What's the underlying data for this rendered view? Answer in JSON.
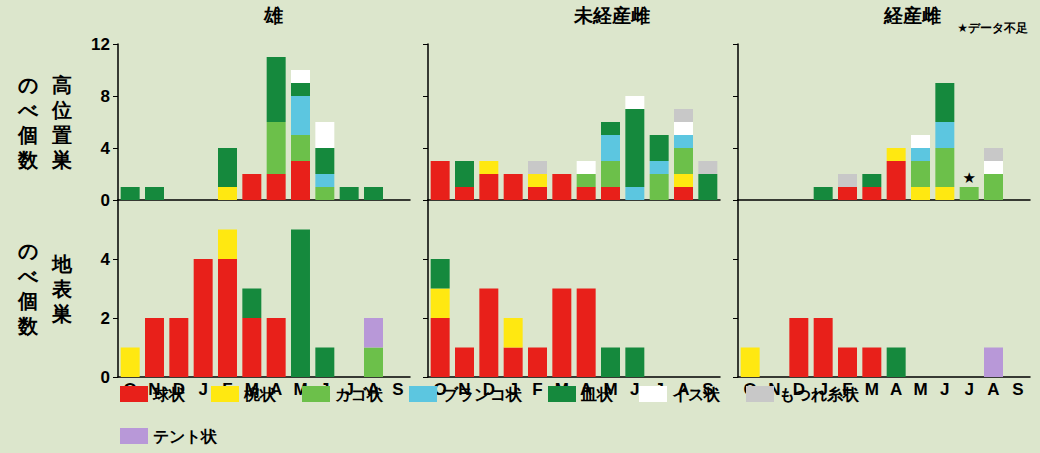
{
  "chart_data": [
    {
      "type": "bar",
      "title": "雄",
      "ylabel": [
        "のべ個数",
        "高位置巣"
      ],
      "stacked": true,
      "grid": false,
      "legend": "bottom",
      "tick_labels": "y",
      "categories": [
        "O",
        "N",
        "D",
        "J",
        "F",
        "M",
        "A",
        "M",
        "J",
        "J",
        "A",
        "S"
      ],
      "ylim": [
        0,
        12
      ],
      "yticks": [
        0,
        4,
        8,
        12
      ],
      "series": [
        {
          "name": "球状",
          "color": "#e8201a",
          "values": [
            0,
            0,
            0,
            0,
            0,
            2,
            2,
            3,
            0,
            0,
            0,
            0
          ]
        },
        {
          "name": "椀状",
          "color": "#ffe811",
          "values": [
            0,
            0,
            0,
            0,
            1,
            0,
            0,
            0,
            0,
            0,
            0,
            0
          ]
        },
        {
          "name": "カゴ状",
          "color": "#6cc04a",
          "values": [
            0,
            0,
            0,
            0,
            0,
            0,
            4,
            2,
            1,
            0,
            0,
            0
          ]
        },
        {
          "name": "ブランコ状",
          "color": "#5cc6e0",
          "values": [
            0,
            0,
            0,
            0,
            0,
            0,
            0,
            3,
            1,
            0,
            0,
            0
          ]
        },
        {
          "name": "皿状",
          "color": "#15893d",
          "values": [
            1,
            1,
            0,
            0,
            3,
            0,
            5,
            1,
            2,
            1,
            1,
            0
          ]
        },
        {
          "name": "イス状",
          "color": "#ffffff",
          "values": [
            0,
            0,
            0,
            0,
            0,
            0,
            0,
            1,
            2,
            0,
            0,
            0
          ]
        },
        {
          "name": "もつれ糸状",
          "color": "#c8c8c8",
          "values": [
            0,
            0,
            0,
            0,
            0,
            0,
            0,
            0,
            0,
            0,
            0,
            0
          ]
        },
        {
          "name": "テント状",
          "color": "#b898d8",
          "values": [
            0,
            0,
            0,
            0,
            0,
            0,
            0,
            0,
            0,
            0,
            0,
            0
          ]
        }
      ]
    },
    {
      "type": "bar",
      "title": "未経産雌",
      "stacked": true,
      "grid": false,
      "tick_labels": false,
      "categories": [
        "O",
        "N",
        "D",
        "J",
        "F",
        "M",
        "A",
        "M",
        "J",
        "J",
        "A",
        "S"
      ],
      "ylim": [
        0,
        12
      ],
      "yticks": [
        0,
        4,
        8,
        12
      ],
      "series": [
        {
          "name": "球状",
          "color": "#e8201a",
          "values": [
            3,
            1,
            2,
            2,
            1,
            2,
            1,
            1,
            0,
            0,
            1,
            0
          ]
        },
        {
          "name": "椀状",
          "color": "#ffe811",
          "values": [
            0,
            0,
            1,
            0,
            1,
            0,
            0,
            0,
            0,
            0,
            1,
            0
          ]
        },
        {
          "name": "カゴ状",
          "color": "#6cc04a",
          "values": [
            0,
            0,
            0,
            0,
            0,
            0,
            1,
            2,
            0,
            2,
            2,
            0
          ]
        },
        {
          "name": "ブランコ状",
          "color": "#5cc6e0",
          "values": [
            0,
            0,
            0,
            0,
            0,
            0,
            0,
            2,
            1,
            1,
            1,
            0
          ]
        },
        {
          "name": "皿状",
          "color": "#15893d",
          "values": [
            0,
            2,
            0,
            0,
            0,
            0,
            0,
            1,
            6,
            2,
            0,
            2
          ]
        },
        {
          "name": "イス状",
          "color": "#ffffff",
          "values": [
            0,
            0,
            0,
            0,
            0,
            0,
            1,
            0,
            1,
            0,
            1,
            0
          ]
        },
        {
          "name": "もつれ糸状",
          "color": "#c8c8c8",
          "values": [
            0,
            0,
            0,
            0,
            1,
            0,
            0,
            0,
            0,
            0,
            1,
            1
          ]
        },
        {
          "name": "テント状",
          "color": "#b898d8",
          "values": [
            0,
            0,
            0,
            0,
            0,
            0,
            0,
            0,
            0,
            0,
            0,
            0
          ]
        }
      ]
    },
    {
      "type": "bar",
      "title": "経産雌",
      "stacked": true,
      "grid": false,
      "tick_labels": false,
      "annotations": [
        {
          "text": "★データ不足"
        },
        {
          "text": "★",
          "category": 9
        }
      ],
      "categories": [
        "O",
        "N",
        "D",
        "J",
        "F",
        "M",
        "A",
        "M",
        "J",
        "J",
        "A",
        "S"
      ],
      "ylim": [
        0,
        12
      ],
      "yticks": [
        0,
        4,
        8,
        12
      ],
      "series": [
        {
          "name": "球状",
          "color": "#e8201a",
          "values": [
            0,
            0,
            0,
            0,
            1,
            1,
            3,
            0,
            0,
            0,
            0,
            0
          ]
        },
        {
          "name": "椀状",
          "color": "#ffe811",
          "values": [
            0,
            0,
            0,
            0,
            0,
            0,
            1,
            1,
            1,
            0,
            0,
            0
          ]
        },
        {
          "name": "カゴ状",
          "color": "#6cc04a",
          "values": [
            0,
            0,
            0,
            0,
            0,
            0,
            0,
            2,
            3,
            1,
            2,
            0
          ]
        },
        {
          "name": "ブランコ状",
          "color": "#5cc6e0",
          "values": [
            0,
            0,
            0,
            0,
            0,
            0,
            0,
            1,
            2,
            0,
            0,
            0
          ]
        },
        {
          "name": "皿状",
          "color": "#15893d",
          "values": [
            0,
            0,
            0,
            1,
            0,
            1,
            0,
            0,
            3,
            0,
            0,
            0
          ]
        },
        {
          "name": "イス状",
          "color": "#ffffff",
          "values": [
            0,
            0,
            0,
            0,
            0,
            0,
            0,
            1,
            0,
            0,
            1,
            0
          ]
        },
        {
          "name": "もつれ糸状",
          "color": "#c8c8c8",
          "values": [
            0,
            0,
            0,
            0,
            1,
            0,
            0,
            0,
            0,
            0,
            1,
            0
          ]
        },
        {
          "name": "テント状",
          "color": "#b898d8",
          "values": [
            0,
            0,
            0,
            0,
            0,
            0,
            0,
            0,
            0,
            0,
            0,
            0
          ]
        }
      ]
    },
    {
      "type": "bar",
      "ylabel": [
        "のべ個数",
        "地表巣"
      ],
      "stacked": true,
      "grid": false,
      "tick_labels": true,
      "categories": [
        "O",
        "N",
        "D",
        "J",
        "F",
        "M",
        "A",
        "M",
        "J",
        "J",
        "A",
        "S"
      ],
      "ylim": [
        0,
        6
      ],
      "yticks": [
        0,
        2,
        4
      ],
      "series": [
        {
          "name": "球状",
          "color": "#e8201a",
          "values": [
            0,
            2,
            2,
            4,
            4,
            2,
            2,
            0,
            0,
            0,
            0,
            0
          ]
        },
        {
          "name": "椀状",
          "color": "#ffe811",
          "values": [
            1,
            0,
            0,
            0,
            1,
            0,
            0,
            0,
            0,
            0,
            0,
            0
          ]
        },
        {
          "name": "カゴ状",
          "color": "#6cc04a",
          "values": [
            0,
            0,
            0,
            0,
            0,
            0,
            0,
            0,
            0,
            0,
            1,
            0
          ]
        },
        {
          "name": "ブランコ状",
          "color": "#5cc6e0",
          "values": [
            0,
            0,
            0,
            0,
            0,
            0,
            0,
            0,
            0,
            0,
            0,
            0
          ]
        },
        {
          "name": "皿状",
          "color": "#15893d",
          "values": [
            0,
            0,
            0,
            0,
            0,
            1,
            0,
            5,
            1,
            0,
            0,
            0
          ]
        },
        {
          "name": "イス状",
          "color": "#ffffff",
          "values": [
            0,
            0,
            0,
            0,
            0,
            0,
            0,
            0,
            0,
            0,
            0,
            0
          ]
        },
        {
          "name": "もつれ糸状",
          "color": "#c8c8c8",
          "values": [
            0,
            0,
            0,
            0,
            0,
            0,
            0,
            0,
            0,
            0,
            0,
            0
          ]
        },
        {
          "name": "テント状",
          "color": "#b898d8",
          "values": [
            0,
            0,
            0,
            0,
            0,
            0,
            0,
            0,
            0,
            0,
            1,
            0
          ]
        }
      ]
    },
    {
      "type": "bar",
      "stacked": true,
      "grid": false,
      "tick_labels": "x",
      "categories": [
        "O",
        "N",
        "D",
        "J",
        "F",
        "M",
        "A",
        "M",
        "J",
        "J",
        "A",
        "S"
      ],
      "ylim": [
        0,
        6
      ],
      "yticks": [
        0,
        2,
        4
      ],
      "series": [
        {
          "name": "球状",
          "color": "#e8201a",
          "values": [
            2,
            1,
            3,
            1,
            1,
            3,
            3,
            0,
            0,
            0,
            0,
            0
          ]
        },
        {
          "name": "椀状",
          "color": "#ffe811",
          "values": [
            1,
            0,
            0,
            1,
            0,
            0,
            0,
            0,
            0,
            0,
            0,
            0
          ]
        },
        {
          "name": "カゴ状",
          "color": "#6cc04a",
          "values": [
            0,
            0,
            0,
            0,
            0,
            0,
            0,
            0,
            0,
            0,
            0,
            0
          ]
        },
        {
          "name": "ブランコ状",
          "color": "#5cc6e0",
          "values": [
            0,
            0,
            0,
            0,
            0,
            0,
            0,
            0,
            0,
            0,
            0,
            0
          ]
        },
        {
          "name": "皿状",
          "color": "#15893d",
          "values": [
            1,
            0,
            0,
            0,
            0,
            0,
            0,
            1,
            1,
            0,
            0,
            0
          ]
        },
        {
          "name": "イス状",
          "color": "#ffffff",
          "values": [
            0,
            0,
            0,
            0,
            0,
            0,
            0,
            0,
            0,
            0,
            0,
            0
          ]
        },
        {
          "name": "もつれ糸状",
          "color": "#c8c8c8",
          "values": [
            0,
            0,
            0,
            0,
            0,
            0,
            0,
            0,
            0,
            0,
            0,
            0
          ]
        },
        {
          "name": "テント状",
          "color": "#b898d8",
          "values": [
            0,
            0,
            0,
            0,
            0,
            0,
            0,
            0,
            0,
            0,
            0,
            0
          ]
        }
      ]
    },
    {
      "type": "bar",
      "stacked": true,
      "grid": false,
      "tick_labels": "x",
      "categories": [
        "O",
        "N",
        "D",
        "J",
        "F",
        "M",
        "A",
        "M",
        "J",
        "J",
        "A",
        "S"
      ],
      "ylim": [
        0,
        6
      ],
      "yticks": [
        0,
        2,
        4
      ],
      "series": [
        {
          "name": "球状",
          "color": "#e8201a",
          "values": [
            0,
            0,
            2,
            2,
            1,
            1,
            0,
            0,
            0,
            0,
            0,
            0
          ]
        },
        {
          "name": "椀状",
          "color": "#ffe811",
          "values": [
            1,
            0,
            0,
            0,
            0,
            0,
            0,
            0,
            0,
            0,
            0,
            0
          ]
        },
        {
          "name": "カゴ状",
          "color": "#6cc04a",
          "values": [
            0,
            0,
            0,
            0,
            0,
            0,
            0,
            0,
            0,
            0,
            0,
            0
          ]
        },
        {
          "name": "ブランコ状",
          "color": "#5cc6e0",
          "values": [
            0,
            0,
            0,
            0,
            0,
            0,
            0,
            0,
            0,
            0,
            0,
            0
          ]
        },
        {
          "name": "皿状",
          "color": "#15893d",
          "values": [
            0,
            0,
            0,
            0,
            0,
            0,
            1,
            0,
            0,
            0,
            0,
            0
          ]
        },
        {
          "name": "イス状",
          "color": "#ffffff",
          "values": [
            0,
            0,
            0,
            0,
            0,
            0,
            0,
            0,
            0,
            0,
            0,
            0
          ]
        },
        {
          "name": "もつれ糸状",
          "color": "#c8c8c8",
          "values": [
            0,
            0,
            0,
            0,
            0,
            0,
            0,
            0,
            0,
            0,
            0,
            0
          ]
        },
        {
          "name": "テント状",
          "color": "#b898d8",
          "values": [
            0,
            0,
            0,
            0,
            0,
            0,
            0,
            0,
            0,
            0,
            1,
            0
          ]
        }
      ]
    }
  ]
}
